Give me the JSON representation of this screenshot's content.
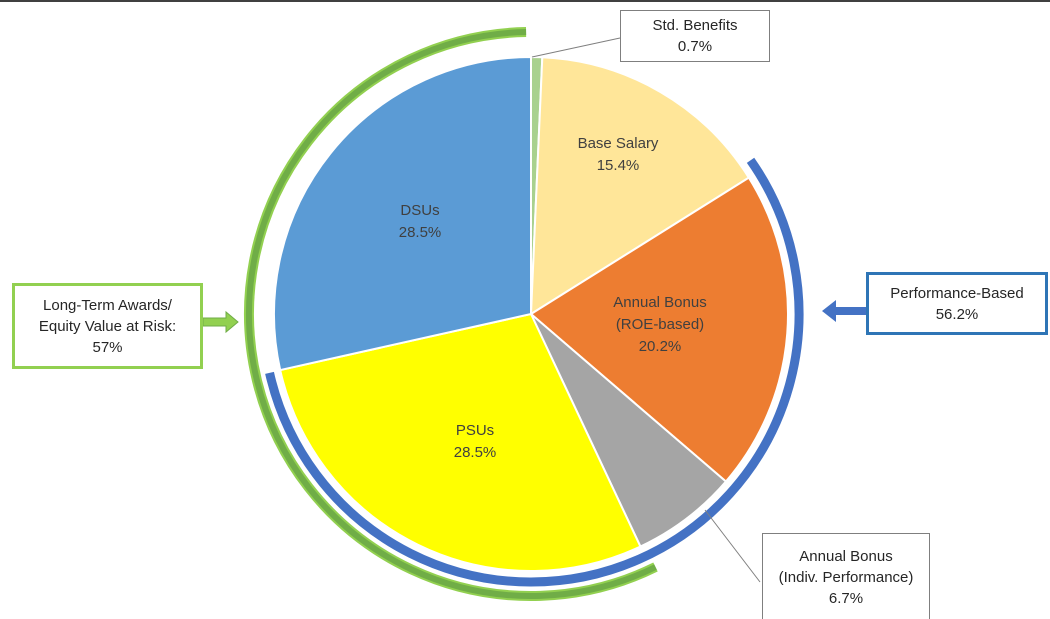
{
  "chart_data": {
    "type": "pie",
    "categories": [
      "Std. Benefits",
      "Base Salary",
      "Annual Bonus\n(ROE-based)",
      "Annual Bonus\n(Indiv. Performance)",
      "PSUs",
      "DSUs"
    ],
    "values": [
      0.7,
      15.4,
      20.2,
      6.7,
      28.5,
      28.5
    ],
    "value_labels": [
      "0.7%",
      "15.4%",
      "20.2%",
      "6.7%",
      "28.5%",
      "28.5%"
    ],
    "colors": [
      "#a9d18e",
      "#ffe699",
      "#ed7d31",
      "#a5a5a5",
      "#ffff00",
      "#5b9bd5"
    ],
    "groups": [
      {
        "name": "Long-Term Awards/\nEquity Value at Risk:",
        "value": 57,
        "value_label": "57%",
        "color": "#70ad47"
      },
      {
        "name": "Performance-Based",
        "value": 56.2,
        "value_label": "56.2%",
        "color": "#4472c4"
      }
    ]
  }
}
